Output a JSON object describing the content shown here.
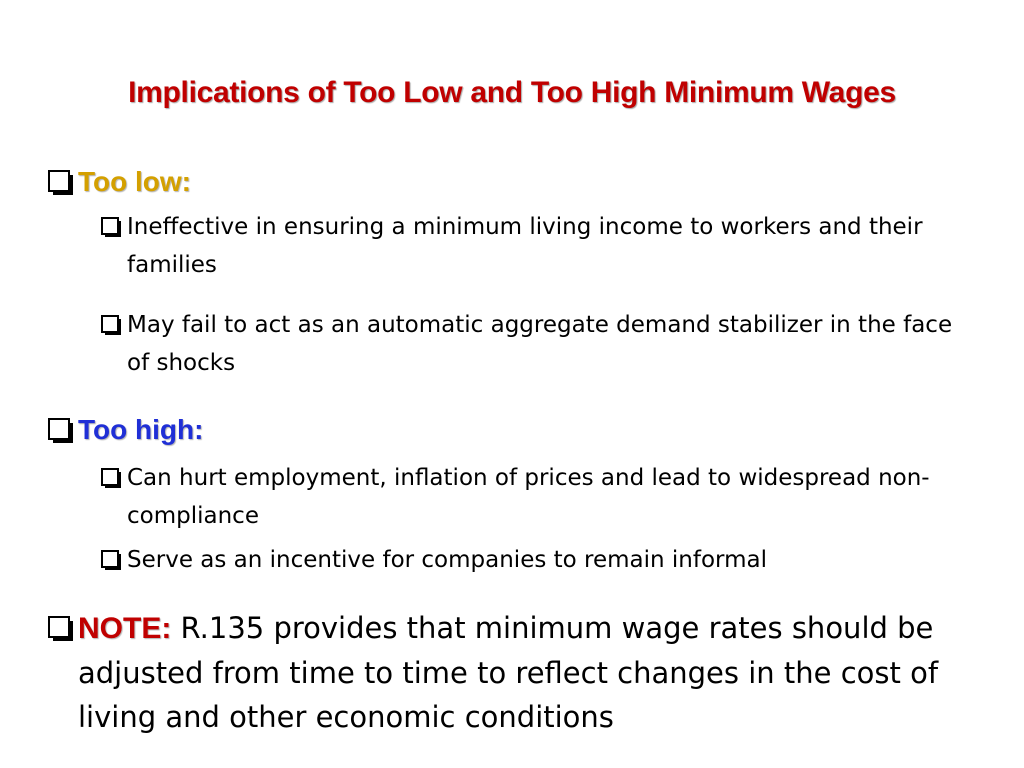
{
  "title": "Implications of Too Low and Too High Minimum Wages",
  "sections": [
    {
      "heading": "Too low:",
      "items": [
        "Ineffective in ensuring a minimum living income to workers and their families",
        "May fail to act as an automatic aggregate demand stabilizer in the face of shocks"
      ]
    },
    {
      "heading": "Too high:",
      "items": [
        "Can hurt employment, inflation of prices and lead to widespread non-compliance",
        "Serve as an incentive for companies to remain informal"
      ]
    }
  ],
  "note": {
    "label": "NOTE:",
    "text": "R.135 provides that minimum wage rates should be adjusted from time to time to reflect changes in the cost of living and other economic conditions"
  },
  "colors": {
    "title": "#c00000",
    "too_low": "#d4a000",
    "too_high": "#1f2fd6",
    "note_label": "#c00000"
  },
  "icons": {
    "bullet": "checkbox-icon"
  }
}
